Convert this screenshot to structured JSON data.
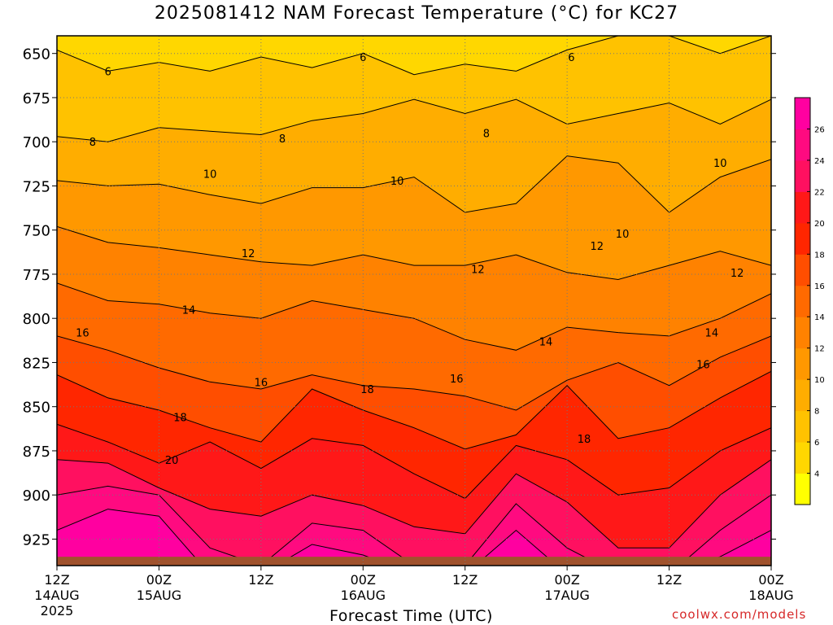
{
  "chart_data": {
    "type": "heatmap",
    "title": "2025081412 NAM Forecast Temperature (°C) for KC27",
    "xlabel": "Forecast Time (UTC)",
    "ylabel": "",
    "y_scale": "pressure",
    "y_range": [
      640,
      940
    ],
    "y_ticks": [
      650,
      675,
      700,
      725,
      750,
      775,
      800,
      825,
      850,
      875,
      900,
      925
    ],
    "x_range": [
      0,
      84
    ],
    "x_ticks": [
      {
        "h": 0,
        "l1": "12Z",
        "l2": "14AUG",
        "l3": "2025"
      },
      {
        "h": 12,
        "l1": "00Z",
        "l2": "15AUG",
        "l3": ""
      },
      {
        "h": 24,
        "l1": "12Z",
        "l2": "",
        "l3": ""
      },
      {
        "h": 36,
        "l1": "00Z",
        "l2": "16AUG",
        "l3": ""
      },
      {
        "h": 48,
        "l1": "12Z",
        "l2": "",
        "l3": ""
      },
      {
        "h": 60,
        "l1": "00Z",
        "l2": "17AUG",
        "l3": ""
      },
      {
        "h": 72,
        "l1": "12Z",
        "l2": "",
        "l3": ""
      },
      {
        "h": 84,
        "l1": "00Z",
        "l2": "18AUG",
        "l3": ""
      }
    ],
    "grid": true,
    "legend": "colorbar-right",
    "colorbar": {
      "levels": [
        2,
        4,
        6,
        8,
        10,
        12,
        14,
        16,
        18,
        20,
        22,
        24,
        26,
        28
      ],
      "labels": [
        4,
        6,
        8,
        10,
        12,
        14,
        16,
        18,
        20,
        22,
        24,
        26
      ],
      "colors": [
        "#ffff00",
        "#ffd700",
        "#ffc200",
        "#ffad00",
        "#ff9800",
        "#ff8200",
        "#ff6a00",
        "#ff4e00",
        "#ff2600",
        "#ff1818",
        "#ff1060",
        "#ff0a80",
        "#ff00a0"
      ]
    },
    "isotherms": [
      {
        "temp": 6,
        "p": [
          648,
          660,
          655,
          660,
          652,
          658,
          650,
          662,
          656,
          660,
          648,
          640,
          640,
          650,
          640
        ]
      },
      {
        "temp": 8,
        "p": [
          697,
          700,
          692,
          694,
          696,
          688,
          684,
          676,
          684,
          676,
          690,
          684,
          678,
          690,
          676
        ]
      },
      {
        "temp": 10,
        "p": [
          722,
          725,
          724,
          730,
          735,
          726,
          726,
          720,
          740,
          735,
          708,
          712,
          740,
          720,
          710
        ]
      },
      {
        "temp": 12,
        "p": [
          748,
          757,
          760,
          764,
          768,
          770,
          764,
          770,
          770,
          764,
          774,
          778,
          770,
          762,
          770
        ]
      },
      {
        "temp": 14,
        "p": [
          780,
          790,
          792,
          797,
          800,
          790,
          795,
          800,
          812,
          818,
          805,
          808,
          810,
          800,
          786
        ]
      },
      {
        "temp": 16,
        "p": [
          810,
          818,
          828,
          836,
          840,
          832,
          838,
          840,
          844,
          852,
          835,
          825,
          838,
          822,
          810
        ]
      },
      {
        "temp": 18,
        "p": [
          832,
          845,
          852,
          862,
          870,
          840,
          852,
          862,
          874,
          866,
          838,
          868,
          862,
          845,
          830
        ]
      },
      {
        "temp": 20,
        "p": [
          860,
          870,
          882,
          870,
          885,
          868,
          872,
          888,
          902,
          872,
          880,
          900,
          896,
          875,
          862
        ]
      },
      {
        "temp": 22,
        "p": [
          880,
          882,
          896,
          908,
          912,
          900,
          906,
          918,
          922,
          888,
          904,
          930,
          930,
          900,
          880
        ]
      },
      {
        "temp": 24,
        "p": [
          900,
          895,
          900,
          930,
          940,
          916,
          920,
          940,
          940,
          905,
          930,
          945,
          945,
          920,
          900
        ]
      },
      {
        "temp": 26,
        "p": [
          920,
          908,
          912,
          945,
          945,
          928,
          934,
          945,
          945,
          920,
          945,
          945,
          945,
          935,
          920
        ]
      }
    ],
    "contour_labels": [
      {
        "text": "6",
        "h": 6.0,
        "p": 660
      },
      {
        "text": "6",
        "h": 36.0,
        "p": 652
      },
      {
        "text": "6",
        "h": 60.5,
        "p": 652
      },
      {
        "text": "8",
        "h": 4.2,
        "p": 700
      },
      {
        "text": "8",
        "h": 26.5,
        "p": 698
      },
      {
        "text": "8",
        "h": 50.5,
        "p": 695
      },
      {
        "text": "10",
        "h": 18.0,
        "p": 718
      },
      {
        "text": "10",
        "h": 40.0,
        "p": 722
      },
      {
        "text": "10",
        "h": 66.5,
        "p": 752
      },
      {
        "text": "10",
        "h": 78.0,
        "p": 712
      },
      {
        "text": "12",
        "h": 22.5,
        "p": 763
      },
      {
        "text": "12",
        "h": 49.5,
        "p": 772
      },
      {
        "text": "12",
        "h": 63.5,
        "p": 759
      },
      {
        "text": "12",
        "h": 80.0,
        "p": 774
      },
      {
        "text": "14",
        "h": 15.5,
        "p": 795
      },
      {
        "text": "14",
        "h": 57.5,
        "p": 813
      },
      {
        "text": "14",
        "h": 77.0,
        "p": 808
      },
      {
        "text": "16",
        "h": 3.0,
        "p": 808
      },
      {
        "text": "16",
        "h": 24.0,
        "p": 836
      },
      {
        "text": "16",
        "h": 47.0,
        "p": 834
      },
      {
        "text": "16",
        "h": 76.0,
        "p": 826
      },
      {
        "text": "18",
        "h": 14.5,
        "p": 856
      },
      {
        "text": "18",
        "h": 36.5,
        "p": 840
      },
      {
        "text": "18",
        "h": 62.0,
        "p": 868
      },
      {
        "text": "20",
        "h": 13.5,
        "p": 880
      }
    ],
    "surface_pressure": 935,
    "ground_color": "#a0522d"
  },
  "credit": "coolwx.com/models"
}
